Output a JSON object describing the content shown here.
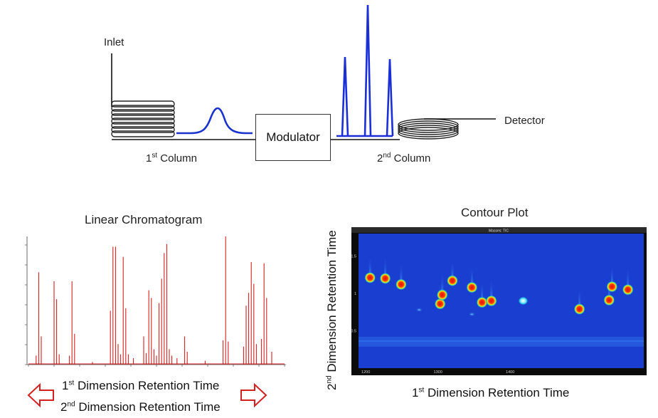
{
  "schematic": {
    "inlet_label": "Inlet",
    "modulator_label": "Modulator",
    "detector_label": "Detector",
    "first_column": {
      "prefix": "1",
      "sup": "st",
      "text": " Column"
    },
    "second_column": {
      "prefix": "2",
      "sup": "nd",
      "text": " Column"
    },
    "first_peak_color": "#1a33cc",
    "second_peaks_color": "#1a2fd6"
  },
  "linear_chromatogram": {
    "title": "Linear Chromatogram",
    "trace_color": "#d32020",
    "x_axis_label": {
      "line1": {
        "prefix": "1",
        "sup": "st",
        "text": " Dimension Retention Time"
      },
      "line2": {
        "prefix": "2",
        "sup": "nd",
        "text": " Dimension Retention Time"
      }
    },
    "arrow_color": "#d32020"
  },
  "contour_plot": {
    "title": "Contour Plot",
    "header_text": "Masses: TIC",
    "x_axis_label": {
      "prefix": "1",
      "sup": "st",
      "text": " Dimension Retention Time"
    },
    "y_axis_label": {
      "prefix": "2",
      "sup": "nd",
      "text": " Dimension Retention Time"
    },
    "x_ticks": [
      "1200",
      "1300",
      "1400"
    ],
    "y_ticks": [
      "0.5",
      "1",
      "1.5"
    ],
    "background_color": "#1a3fd0"
  },
  "chart_data": [
    {
      "type": "line",
      "title": "Linear Chromatogram",
      "xlabel": "1st Dimension Retention Time / 2nd Dimension Retention Time",
      "ylabel": "",
      "ylim": [
        0,
        100
      ],
      "peaks": [
        {
          "x": 3,
          "y": 7
        },
        {
          "x": 4,
          "y": 72
        },
        {
          "x": 5,
          "y": 22
        },
        {
          "x": 10,
          "y": 65
        },
        {
          "x": 11,
          "y": 51
        },
        {
          "x": 12,
          "y": 8
        },
        {
          "x": 16,
          "y": 7
        },
        {
          "x": 17,
          "y": 65
        },
        {
          "x": 18,
          "y": 24
        },
        {
          "x": 25,
          "y": 2
        },
        {
          "x": 32,
          "y": 42
        },
        {
          "x": 33,
          "y": 92
        },
        {
          "x": 34,
          "y": 92
        },
        {
          "x": 35,
          "y": 16
        },
        {
          "x": 36,
          "y": 8
        },
        {
          "x": 37,
          "y": 84
        },
        {
          "x": 38,
          "y": 44
        },
        {
          "x": 39,
          "y": 8
        },
        {
          "x": 41,
          "y": 5
        },
        {
          "x": 45,
          "y": 22
        },
        {
          "x": 46,
          "y": 9
        },
        {
          "x": 47,
          "y": 58
        },
        {
          "x": 48,
          "y": 52
        },
        {
          "x": 49,
          "y": 12
        },
        {
          "x": 50,
          "y": 7
        },
        {
          "x": 51,
          "y": 48
        },
        {
          "x": 52,
          "y": 67
        },
        {
          "x": 53,
          "y": 87
        },
        {
          "x": 54,
          "y": 94
        },
        {
          "x": 55,
          "y": 12
        },
        {
          "x": 56,
          "y": 7
        },
        {
          "x": 58,
          "y": 5
        },
        {
          "x": 61,
          "y": 22
        },
        {
          "x": 62,
          "y": 10
        },
        {
          "x": 69,
          "y": 3
        },
        {
          "x": 76,
          "y": 19
        },
        {
          "x": 77,
          "y": 100
        },
        {
          "x": 78,
          "y": 18
        },
        {
          "x": 84,
          "y": 14
        },
        {
          "x": 85,
          "y": 46
        },
        {
          "x": 86,
          "y": 56
        },
        {
          "x": 87,
          "y": 80
        },
        {
          "x": 88,
          "y": 63
        },
        {
          "x": 89,
          "y": 16
        },
        {
          "x": 91,
          "y": 20
        },
        {
          "x": 92,
          "y": 79
        },
        {
          "x": 93,
          "y": 52
        },
        {
          "x": 95,
          "y": 10
        }
      ]
    },
    {
      "type": "heatmap",
      "title": "Contour Plot",
      "xlabel": "1st Dimension Retention Time",
      "ylabel": "2nd Dimension Retention Time",
      "xlim": [
        1190,
        1585
      ],
      "ylim": [
        0,
        1.8
      ],
      "x_ticks": [
        1200,
        1300,
        1400
      ],
      "y_ticks": [
        0.5,
        1,
        1.5
      ],
      "spots": [
        {
          "x": 1206,
          "y": 1.21,
          "intensity": "high"
        },
        {
          "x": 1227,
          "y": 1.2,
          "intensity": "high"
        },
        {
          "x": 1249,
          "y": 1.12,
          "intensity": "high"
        },
        {
          "x": 1303,
          "y": 0.86,
          "intensity": "high"
        },
        {
          "x": 1306,
          "y": 0.98,
          "intensity": "high"
        },
        {
          "x": 1320,
          "y": 1.17,
          "intensity": "high"
        },
        {
          "x": 1347,
          "y": 1.08,
          "intensity": "high"
        },
        {
          "x": 1361,
          "y": 0.88,
          "intensity": "high"
        },
        {
          "x": 1374,
          "y": 0.9,
          "intensity": "high"
        },
        {
          "x": 1418,
          "y": 0.9,
          "intensity": "medium"
        },
        {
          "x": 1496,
          "y": 0.79,
          "intensity": "high"
        },
        {
          "x": 1537,
          "y": 0.91,
          "intensity": "high"
        },
        {
          "x": 1541,
          "y": 1.09,
          "intensity": "high"
        },
        {
          "x": 1563,
          "y": 1.05,
          "intensity": "high"
        },
        {
          "x": 1274,
          "y": 0.78,
          "intensity": "low"
        },
        {
          "x": 1347,
          "y": 0.72,
          "intensity": "low"
        }
      ]
    }
  ]
}
